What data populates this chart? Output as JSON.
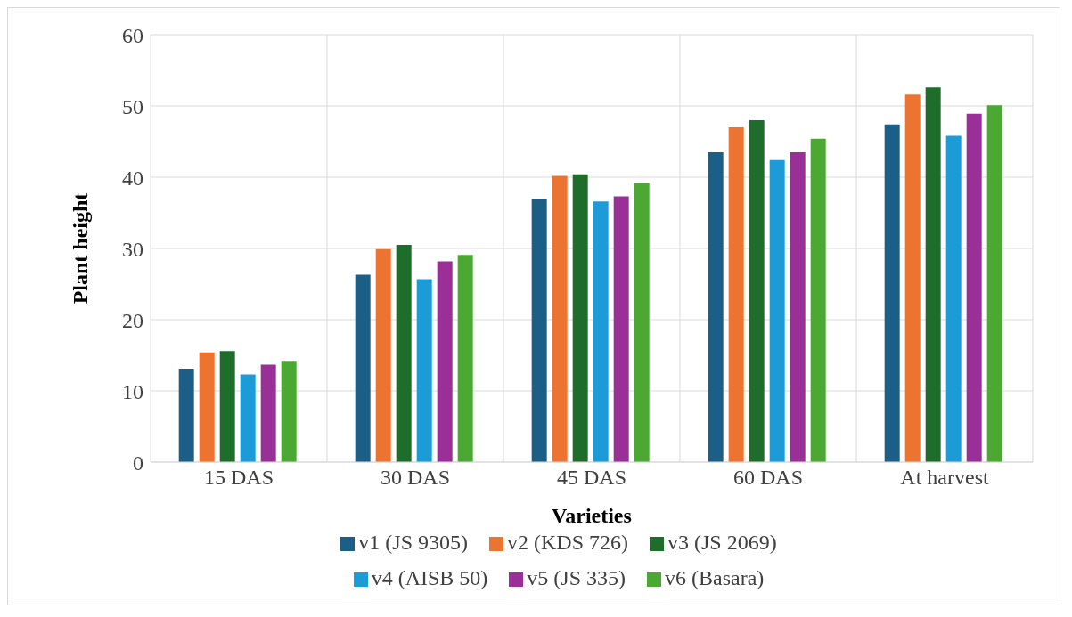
{
  "chart_data": {
    "type": "bar",
    "xlabel": "Varieties",
    "ylabel": "Plant height",
    "categories": [
      "15 DAS",
      "30 DAS",
      "45 DAS",
      "60 DAS",
      "At harvest"
    ],
    "series": [
      {
        "name": "v1 (JS 9305)",
        "color": "#1b5e86",
        "values": [
          13.0,
          26.3,
          36.9,
          43.5,
          47.4
        ]
      },
      {
        "name": "v2 (KDS 726)",
        "color": "#ec7430",
        "values": [
          15.4,
          29.9,
          40.2,
          47.0,
          51.6
        ]
      },
      {
        "name": "v3 (JS 2069)",
        "color": "#1e6d2b",
        "values": [
          15.6,
          30.5,
          40.4,
          48.0,
          52.6
        ]
      },
      {
        "name": "v4 (AISB 50)",
        "color": "#1c9bd7",
        "values": [
          12.3,
          25.7,
          36.6,
          42.4,
          45.8
        ]
      },
      {
        "name": "v5 (JS 335)",
        "color": "#9b2f98",
        "values": [
          13.7,
          28.2,
          37.3,
          43.5,
          48.9
        ]
      },
      {
        "name": "v6 (Basara)",
        "color": "#4ba833",
        "values": [
          14.1,
          29.1,
          39.2,
          45.4,
          50.1
        ]
      }
    ],
    "ylim": [
      0,
      60
    ],
    "yticks": [
      0,
      10,
      20,
      30,
      40,
      50,
      60
    ],
    "grid": true,
    "legend": "bottom"
  }
}
